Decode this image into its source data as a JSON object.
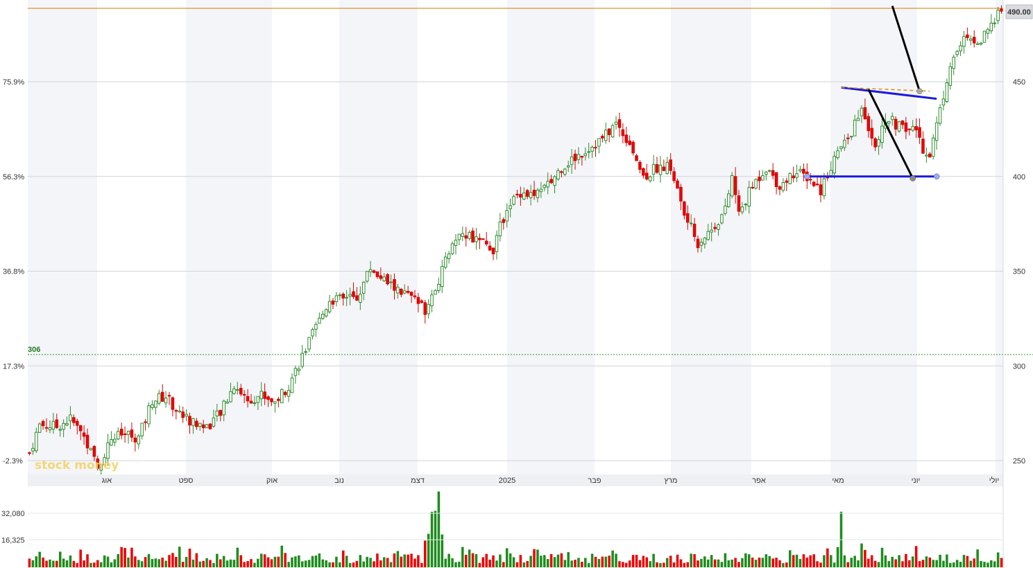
{
  "chart_data": {
    "type": "candlestick",
    "price_scale": {
      "min": 240,
      "max": 490,
      "ticks": [
        250,
        300,
        350,
        400,
        450
      ]
    },
    "percent_labels": [
      {
        "price": 450,
        "label": "75.9%"
      },
      {
        "price": 400,
        "label": "56.3%"
      },
      {
        "price": 350,
        "label": "36.8%"
      },
      {
        "price": 300,
        "label": "17.3%"
      },
      {
        "price": 250,
        "label": "-2.3%"
      }
    ],
    "last_price": {
      "value": 490,
      "label": "490.00"
    },
    "reference_line": {
      "value": 306,
      "label": "306"
    },
    "x_labels": [
      "אוג",
      "ספט",
      "אוק",
      "נוב",
      "דצמ",
      "2025",
      "פבר",
      "מרץ",
      "אפר",
      "מאי",
      "יוני",
      "יולי"
    ],
    "volume_scale": {
      "ticks": [
        {
          "value": 16325,
          "label": "16,325"
        },
        {
          "value": 32080,
          "label": "32,080"
        }
      ],
      "max": 45000
    },
    "close_path": [
      [
        0,
        254
      ],
      [
        3,
        269
      ],
      [
        8,
        268
      ],
      [
        12,
        272
      ],
      [
        16,
        263
      ],
      [
        20,
        246
      ],
      [
        24,
        262
      ],
      [
        28,
        264
      ],
      [
        32,
        262
      ],
      [
        36,
        282
      ],
      [
        40,
        284
      ],
      [
        44,
        275
      ],
      [
        48,
        270
      ],
      [
        52,
        268
      ],
      [
        56,
        275
      ],
      [
        60,
        290
      ],
      [
        64,
        282
      ],
      [
        68,
        285
      ],
      [
        72,
        281
      ],
      [
        76,
        290
      ],
      [
        80,
        305
      ],
      [
        84,
        320
      ],
      [
        88,
        335
      ],
      [
        92,
        335
      ],
      [
        96,
        336
      ],
      [
        100,
        352
      ],
      [
        104,
        345
      ],
      [
        108,
        340
      ],
      [
        112,
        336
      ],
      [
        116,
        330
      ],
      [
        120,
        345
      ],
      [
        124,
        365
      ],
      [
        128,
        370
      ],
      [
        132,
        365
      ],
      [
        136,
        362
      ],
      [
        140,
        384
      ],
      [
        144,
        392
      ],
      [
        148,
        390
      ],
      [
        152,
        395
      ],
      [
        156,
        405
      ],
      [
        160,
        410
      ],
      [
        164,
        415
      ],
      [
        168,
        420
      ],
      [
        172,
        428
      ],
      [
        176,
        418
      ],
      [
        180,
        400
      ],
      [
        184,
        405
      ],
      [
        188,
        405
      ],
      [
        192,
        380
      ],
      [
        196,
        365
      ],
      [
        200,
        372
      ],
      [
        204,
        382
      ],
      [
        206,
        400
      ],
      [
        208,
        380
      ],
      [
        212,
        395
      ],
      [
        216,
        405
      ],
      [
        220,
        395
      ],
      [
        224,
        402
      ],
      [
        228,
        400
      ],
      [
        232,
        393
      ],
      [
        236,
        410
      ],
      [
        240,
        420
      ],
      [
        244,
        435
      ],
      [
        248,
        418
      ],
      [
        252,
        430
      ],
      [
        256,
        425
      ],
      [
        260,
        425
      ],
      [
        262,
        415
      ],
      [
        264,
        412
      ],
      [
        267,
        435
      ],
      [
        270,
        460
      ],
      [
        274,
        472
      ],
      [
        278,
        470
      ],
      [
        282,
        478
      ],
      [
        284,
        490
      ]
    ],
    "annotations": [
      {
        "type": "line",
        "color": "#1a1adb",
        "from": {
          "bar": 228,
          "price": 400
        },
        "to": {
          "bar": 266,
          "price": 400
        }
      },
      {
        "type": "line",
        "color": "#1a1adb",
        "from": {
          "bar": 238,
          "price": 447
        },
        "to": {
          "bar": 266,
          "price": 441
        }
      },
      {
        "type": "line",
        "color": "#e08b00",
        "dashed": true,
        "from": {
          "bar": 238,
          "price": 447
        },
        "to": {
          "bar": 264,
          "price": 445
        }
      },
      {
        "type": "line",
        "color": "#000000",
        "from": {
          "bar": 246,
          "price": 446
        },
        "to": {
          "bar": 259,
          "price": 399
        }
      },
      {
        "type": "line",
        "color": "#000000",
        "from": {
          "bar": 253,
          "price": 490
        },
        "to": {
          "bar": 261,
          "price": 445
        }
      }
    ],
    "watermark": "stock money"
  }
}
